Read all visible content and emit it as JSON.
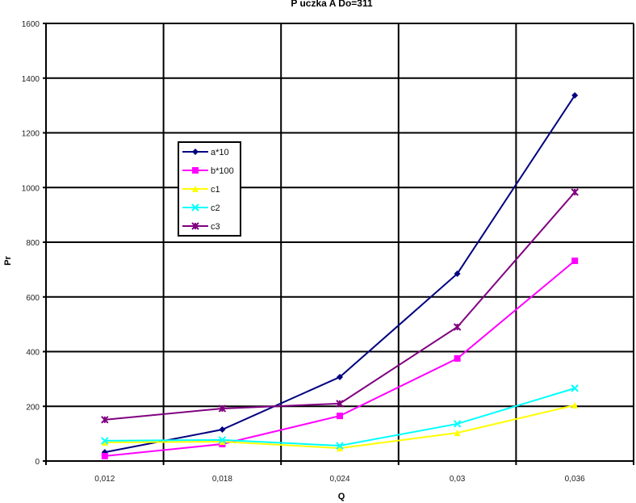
{
  "chart_data": {
    "type": "line",
    "title": "P uczka A Do=311",
    "xlabel": "Q",
    "ylabel": "Pr",
    "categories": [
      "0,012",
      "0,018",
      "0,024",
      "0,03",
      "0,036"
    ],
    "ylim": [
      0,
      1600
    ],
    "yticks": [
      0,
      200,
      400,
      600,
      800,
      1000,
      1200,
      1400,
      1600
    ],
    "grid": true,
    "legend_position": "upper-left-inside",
    "series": [
      {
        "name": "a*10",
        "color": "#000080",
        "marker": "diamond",
        "values": [
          32,
          115,
          307,
          685,
          1337
        ]
      },
      {
        "name": "b*100",
        "color": "#FF00FF",
        "marker": "square",
        "values": [
          18,
          62,
          165,
          375,
          732
        ]
      },
      {
        "name": "c1",
        "color": "#FFFF00",
        "marker": "triangle",
        "values": [
          68,
          71,
          47,
          103,
          204
        ]
      },
      {
        "name": "c2",
        "color": "#00FFFF",
        "marker": "x",
        "values": [
          74,
          77,
          56,
          136,
          266
        ]
      },
      {
        "name": "c3",
        "color": "#800080",
        "marker": "star",
        "values": [
          151,
          192,
          210,
          490,
          983
        ]
      }
    ]
  }
}
